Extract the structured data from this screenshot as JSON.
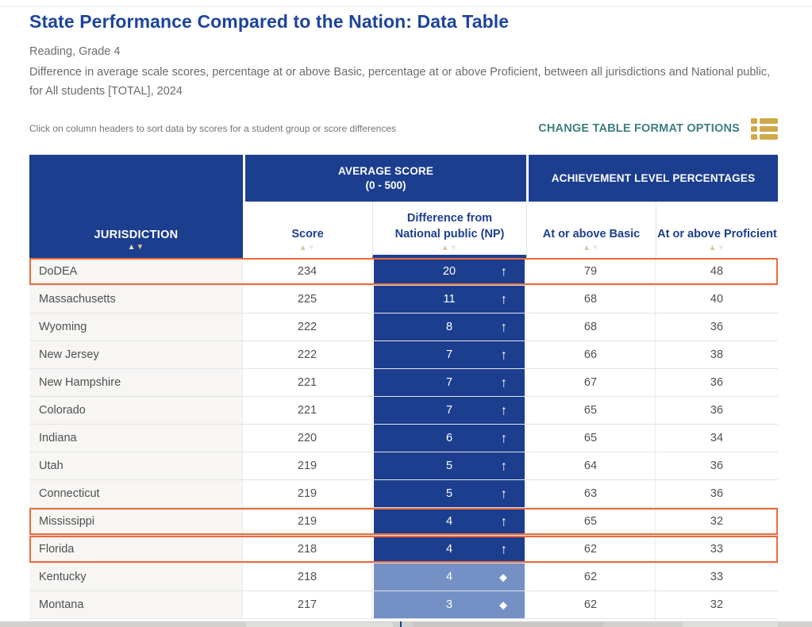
{
  "page": {
    "title": "State Performance Compared to the Nation: Data Table",
    "subtitle": "Reading, Grade 4",
    "description": "Difference in average scale scores, percentage at or above Basic, percentage at or above Proficient, between all jurisdictions and National public, for All students [TOTAL], 2024",
    "sort_hint": "Click on column headers to sort data by scores for a student group or score differences",
    "format_options_label": "CHANGE TABLE FORMAT OPTIONS"
  },
  "table": {
    "group_headers": {
      "average_score_line1": "AVERAGE SCORE",
      "average_score_line2": "(0 - 500)",
      "achievement": "ACHIEVEMENT LEVEL PERCENTAGES"
    },
    "columns": {
      "jurisdiction": "JURISDICTION",
      "score": "Score",
      "diff_line1": "Difference from",
      "diff_line2": "National public (NP)",
      "basic": "At or above Basic",
      "proficient": "At or above Proficient"
    },
    "rows": [
      {
        "jurisdiction": "DoDEA",
        "score": "234",
        "diff": "20",
        "diff_symbol": "up",
        "basic": "79",
        "proficient": "48",
        "highlighted": true,
        "diff_style": "dark"
      },
      {
        "jurisdiction": "Massachusetts",
        "score": "225",
        "diff": "11",
        "diff_symbol": "up",
        "basic": "68",
        "proficient": "40",
        "highlighted": false,
        "diff_style": "dark"
      },
      {
        "jurisdiction": "Wyoming",
        "score": "222",
        "diff": "8",
        "diff_symbol": "up",
        "basic": "68",
        "proficient": "36",
        "highlighted": false,
        "diff_style": "dark"
      },
      {
        "jurisdiction": "New Jersey",
        "score": "222",
        "diff": "7",
        "diff_symbol": "up",
        "basic": "66",
        "proficient": "38",
        "highlighted": false,
        "diff_style": "dark"
      },
      {
        "jurisdiction": "New Hampshire",
        "score": "221",
        "diff": "7",
        "diff_symbol": "up",
        "basic": "67",
        "proficient": "36",
        "highlighted": false,
        "diff_style": "dark"
      },
      {
        "jurisdiction": "Colorado",
        "score": "221",
        "diff": "7",
        "diff_symbol": "up",
        "basic": "65",
        "proficient": "36",
        "highlighted": false,
        "diff_style": "dark"
      },
      {
        "jurisdiction": "Indiana",
        "score": "220",
        "diff": "6",
        "diff_symbol": "up",
        "basic": "65",
        "proficient": "34",
        "highlighted": false,
        "diff_style": "dark"
      },
      {
        "jurisdiction": "Utah",
        "score": "219",
        "diff": "5",
        "diff_symbol": "up",
        "basic": "64",
        "proficient": "36",
        "highlighted": false,
        "diff_style": "dark"
      },
      {
        "jurisdiction": "Connecticut",
        "score": "219",
        "diff": "5",
        "diff_symbol": "up",
        "basic": "63",
        "proficient": "36",
        "highlighted": false,
        "diff_style": "dark"
      },
      {
        "jurisdiction": "Mississippi",
        "score": "219",
        "diff": "4",
        "diff_symbol": "up",
        "basic": "65",
        "proficient": "32",
        "highlighted": true,
        "diff_style": "dark"
      },
      {
        "jurisdiction": "Florida",
        "score": "218",
        "diff": "4",
        "diff_symbol": "up",
        "basic": "62",
        "proficient": "33",
        "highlighted": true,
        "diff_style": "dark"
      },
      {
        "jurisdiction": "Kentucky",
        "score": "218",
        "diff": "4",
        "diff_symbol": "diamond",
        "basic": "62",
        "proficient": "33",
        "highlighted": false,
        "diff_style": "light"
      },
      {
        "jurisdiction": "Montana",
        "score": "217",
        "diff": "3",
        "diff_symbol": "diamond",
        "basic": "62",
        "proficient": "32",
        "highlighted": false,
        "diff_style": "light"
      }
    ]
  },
  "icons": {
    "format_options": "table-format-icon",
    "sort": "sort-arrows-icon",
    "up": "up-arrow-icon",
    "diamond": "diamond-icon"
  },
  "colors": {
    "header_navy": "#1c3e8f",
    "diff_light_blue": "#7590c5",
    "highlight_orange": "#ec6b3d",
    "link_teal": "#3e7f82",
    "icon_gold": "#d0a848",
    "title_blue": "#1d449c"
  },
  "symbols": {
    "up": "↑",
    "diamond": "◆",
    "sort_up": "▲",
    "sort_down": "▼"
  }
}
